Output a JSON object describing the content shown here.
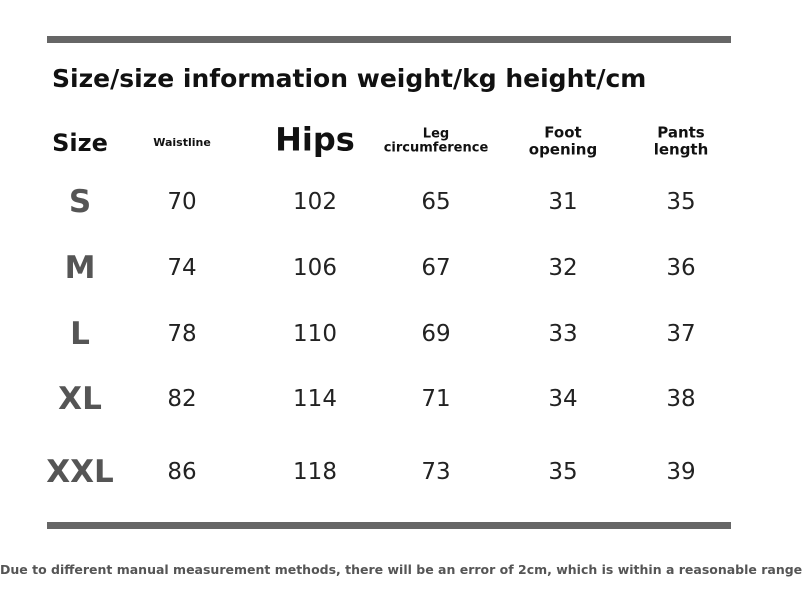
{
  "title": "Size/size information weight/kg height/cm",
  "table": {
    "headers": [
      "Size",
      "Waistline",
      "Hips",
      "Leg circumference",
      "Foot opening",
      "Pants length"
    ],
    "rows": [
      [
        "S",
        70,
        102,
        65,
        31,
        35
      ],
      [
        "M",
        74,
        106,
        67,
        32,
        36
      ],
      [
        "L",
        78,
        110,
        69,
        33,
        37
      ],
      [
        "XL",
        82,
        114,
        71,
        34,
        38
      ],
      [
        "XXL",
        86,
        118,
        73,
        35,
        39
      ]
    ]
  },
  "footer": "Due to different manual measurement methods, there will be an error of 2cm, which is within a reasonable range"
}
